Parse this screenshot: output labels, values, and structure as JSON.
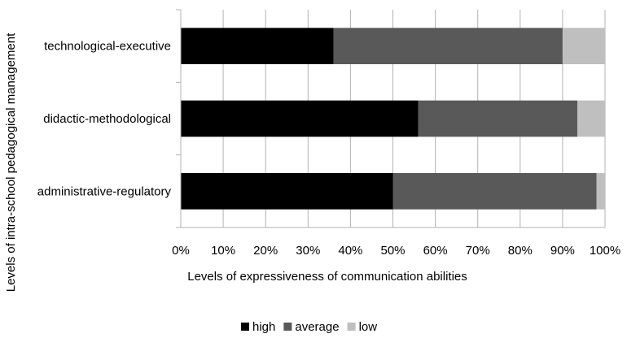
{
  "chart_data": {
    "type": "bar",
    "orientation": "horizontal",
    "stacked": "percent",
    "categories": [
      "technological-executive",
      "didactic-methodological",
      "administrative-regulatory"
    ],
    "series": [
      {
        "name": "high",
        "values": [
          36,
          56,
          50
        ],
        "color": "#000000"
      },
      {
        "name": "average",
        "values": [
          54,
          37.5,
          48
        ],
        "color": "#595959"
      },
      {
        "name": "low",
        "values": [
          10,
          6.5,
          2
        ],
        "color": "#bfbfbf"
      }
    ],
    "xlim": [
      0,
      100
    ],
    "xticks": [
      "0%",
      "10%",
      "20%",
      "30%",
      "40%",
      "50%",
      "60%",
      "70%",
      "80%",
      "90%",
      "100%"
    ],
    "xlabel": "Levels of expressiveness of communication abilities",
    "ylabel": "Levels of intra-school pedagogical management",
    "grid": true,
    "legend_position": "bottom"
  }
}
